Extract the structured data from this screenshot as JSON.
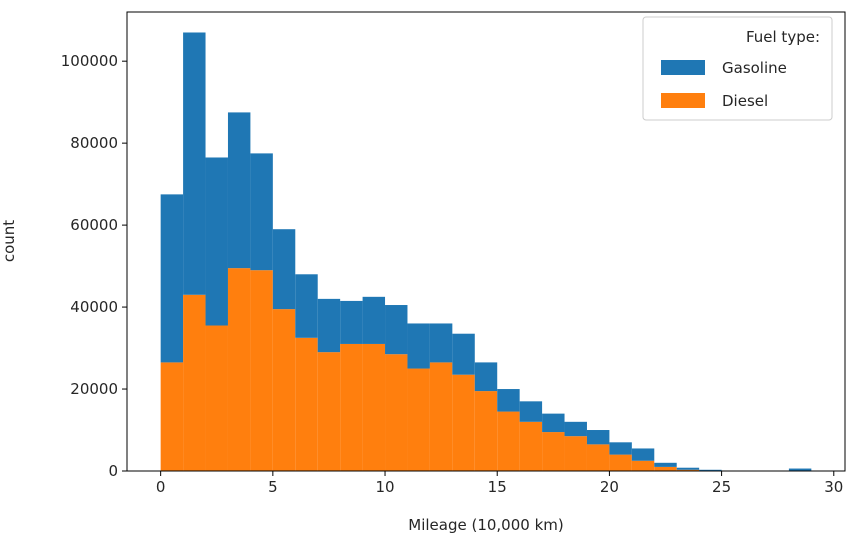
{
  "chart_data": {
    "type": "bar",
    "title": "",
    "xlabel": "Mileage (10,000 km)",
    "ylabel": "count",
    "xlim": [
      -1.5,
      30.5
    ],
    "ylim": [
      0,
      112000
    ],
    "x_ticks": [
      0,
      5,
      10,
      15,
      20,
      25,
      30
    ],
    "y_ticks": [
      0,
      20000,
      40000,
      60000,
      80000,
      100000
    ],
    "bin_edges": [
      0,
      1,
      2,
      3,
      4,
      5,
      6,
      7,
      8,
      9,
      10,
      11,
      12,
      13,
      14,
      15,
      16,
      17,
      18,
      19,
      20,
      21,
      22,
      23,
      24,
      25,
      26,
      27,
      28,
      29
    ],
    "legend": {
      "title": "Fuel type:",
      "position": "top-right"
    },
    "grid": false,
    "stacked": true,
    "series": [
      {
        "name": "Gasoline",
        "color": "#1f77b4",
        "values": [
          41000,
          64000,
          41000,
          38000,
          28500,
          19500,
          15500,
          13000,
          10500,
          11500,
          12000,
          11000,
          9500,
          10000,
          7000,
          5500,
          5000,
          4500,
          3500,
          3500,
          3000,
          3000,
          1000,
          500,
          300,
          0,
          0,
          0,
          600
        ]
      },
      {
        "name": "Diesel",
        "color": "#ff7f0e",
        "values": [
          26500,
          43000,
          35500,
          49500,
          49000,
          39500,
          32500,
          29000,
          31000,
          31000,
          28500,
          25000,
          26500,
          23500,
          19500,
          14500,
          12000,
          9500,
          8500,
          6500,
          4000,
          2500,
          1000,
          300,
          0,
          0,
          0,
          0,
          0
        ]
      }
    ]
  }
}
